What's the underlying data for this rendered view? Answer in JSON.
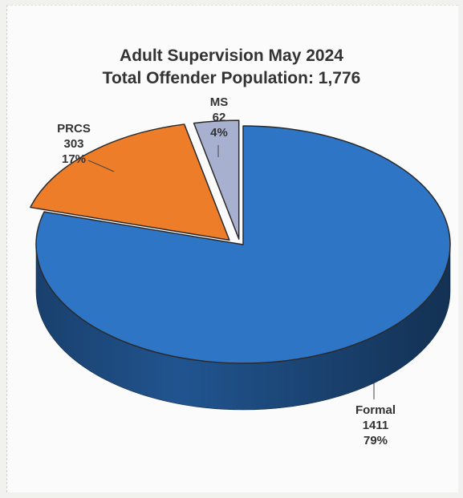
{
  "chart_data": {
    "type": "pie",
    "title": "Adult Supervision May 2024",
    "subtitle": "Total Offender Population: 1,776",
    "slices": [
      {
        "name": "Formal",
        "value": 1411,
        "percent": "79%",
        "color": "#2e75c6"
      },
      {
        "name": "PRCS",
        "value": 303,
        "percent": "17%",
        "color": "#ee7d2a"
      },
      {
        "name": "MS",
        "value": 62,
        "percent": "4%",
        "color": "#a8b0cf"
      }
    ]
  }
}
